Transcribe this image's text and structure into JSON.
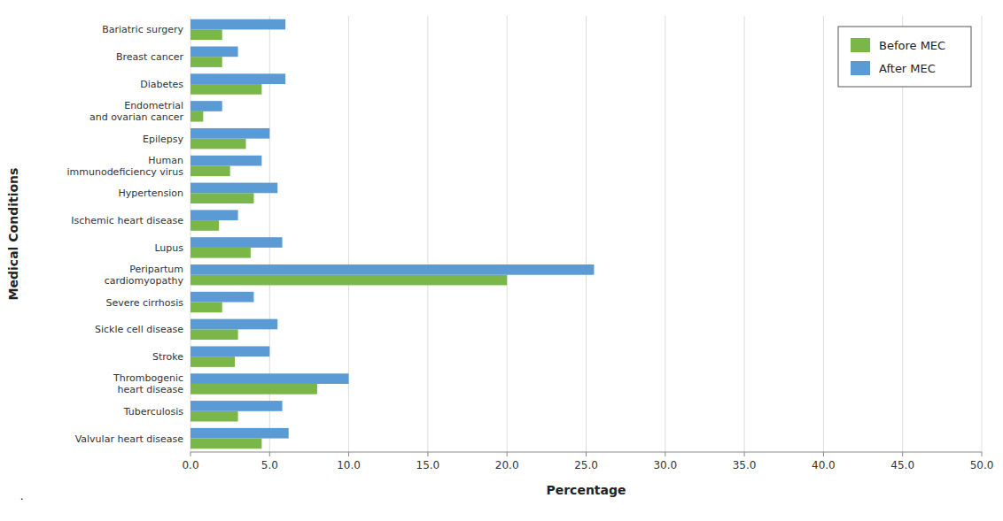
{
  "chart_data": {
    "type": "bar",
    "orientation": "horizontal",
    "categories": [
      "Bariatric surgery",
      "Breast cancer",
      "Diabetes",
      "Endometrial\nand ovarian cancer",
      "Epilepsy",
      "Human\nimmunodeficiency virus",
      "Hypertension",
      "Ischemic heart disease",
      "Lupus",
      "Peripartum\ncardiomyopathy",
      "Severe cirrhosis",
      "Sickle cell disease",
      "Stroke",
      "Thrombogenic\nheart disease",
      "Tuberculosis",
      "Valvular heart disease"
    ],
    "series": [
      {
        "name": "Before MEC",
        "color": "#7AB648",
        "values": [
          2.0,
          2.0,
          4.5,
          0.8,
          3.5,
          2.5,
          4.0,
          1.8,
          3.8,
          20.0,
          2.0,
          3.0,
          2.8,
          8.0,
          3.0,
          4.5
        ]
      },
      {
        "name": "After MEC",
        "color": "#5B9BD5",
        "values": [
          6.0,
          3.0,
          6.0,
          2.0,
          5.0,
          4.5,
          5.5,
          3.0,
          5.8,
          25.5,
          4.0,
          5.5,
          5.0,
          10.0,
          5.8,
          6.2
        ]
      }
    ],
    "x_label": "Percentage",
    "y_label": "Medical Conditions",
    "xlim": [
      0,
      50
    ],
    "xticks": [
      {
        "value": 0,
        "label": "0.0"
      },
      {
        "value": 5,
        "label": "5.0"
      },
      {
        "value": 10,
        "label": "10.0"
      },
      {
        "value": 15,
        "label": "15.0"
      },
      {
        "value": 20,
        "label": "20.0"
      },
      {
        "value": 25,
        "label": "25.0"
      },
      {
        "value": 30,
        "label": "30.0"
      },
      {
        "value": 35,
        "label": "35.0"
      },
      {
        "value": 40,
        "label": "40.0"
      },
      {
        "value": 45,
        "label": "45.0"
      },
      {
        "value": 50,
        "label": "50.0"
      }
    ],
    "grid": true,
    "legend": "upper right",
    "annotations": [
      "."
    ]
  }
}
